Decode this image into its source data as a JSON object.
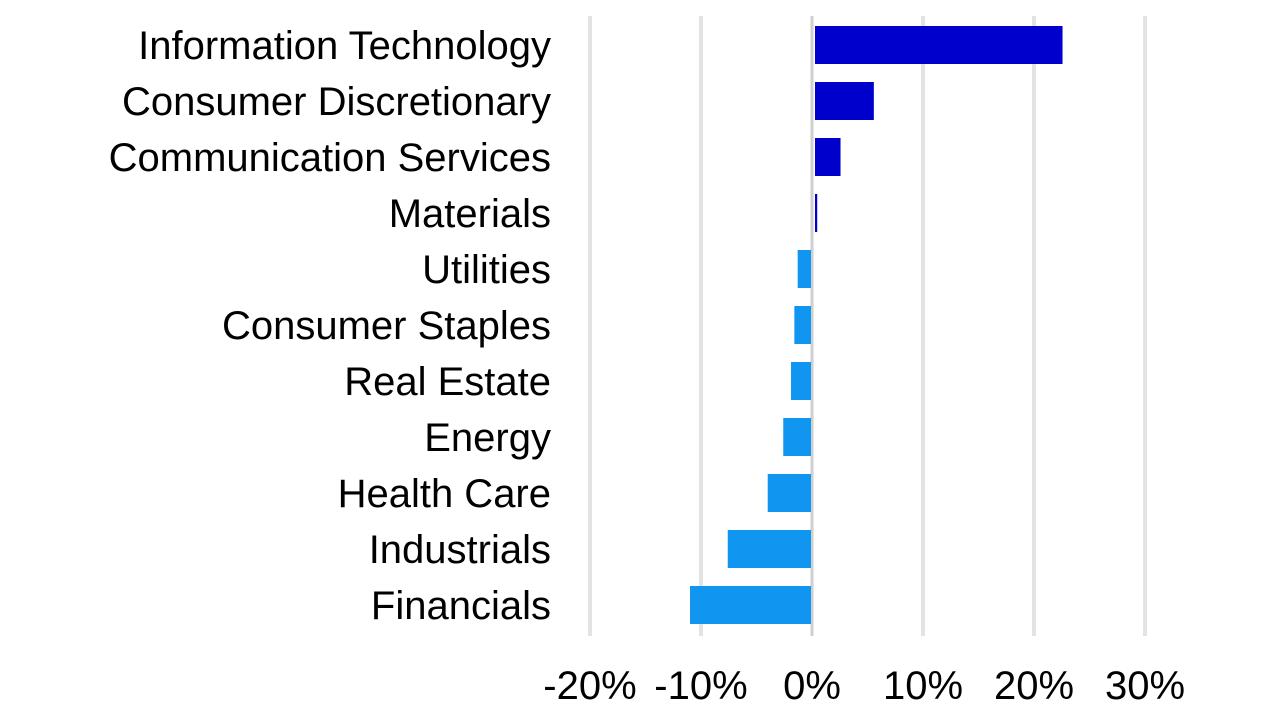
{
  "chart_data": {
    "type": "bar",
    "orientation": "horizontal",
    "title": "",
    "xlabel": "",
    "ylabel": "",
    "categories": [
      "Information Technology",
      "Consumer Discretionary",
      "Communication Services",
      "Materials",
      "Utilities",
      "Consumer Staples",
      "Real Estate",
      "Energy",
      "Health Care",
      "Industrials",
      "Financials"
    ],
    "values": [
      22.3,
      5.3,
      2.3,
      0.2,
      -1.2,
      -1.5,
      -1.8,
      -2.5,
      -3.9,
      -7.5,
      -10.9
    ],
    "xlim": [
      -20,
      30
    ],
    "xticks": [
      -20,
      -10,
      0,
      10,
      20,
      30
    ],
    "xtick_labels": [
      "-20%",
      "-10%",
      "0%",
      "10%",
      "20%",
      "30%"
    ],
    "grid": true,
    "legend": "none",
    "colors": {
      "positive": "#0000cc",
      "negative": "#1096f0",
      "grid": "#e3e3e3",
      "zero_line": "#cfcfcf"
    }
  }
}
